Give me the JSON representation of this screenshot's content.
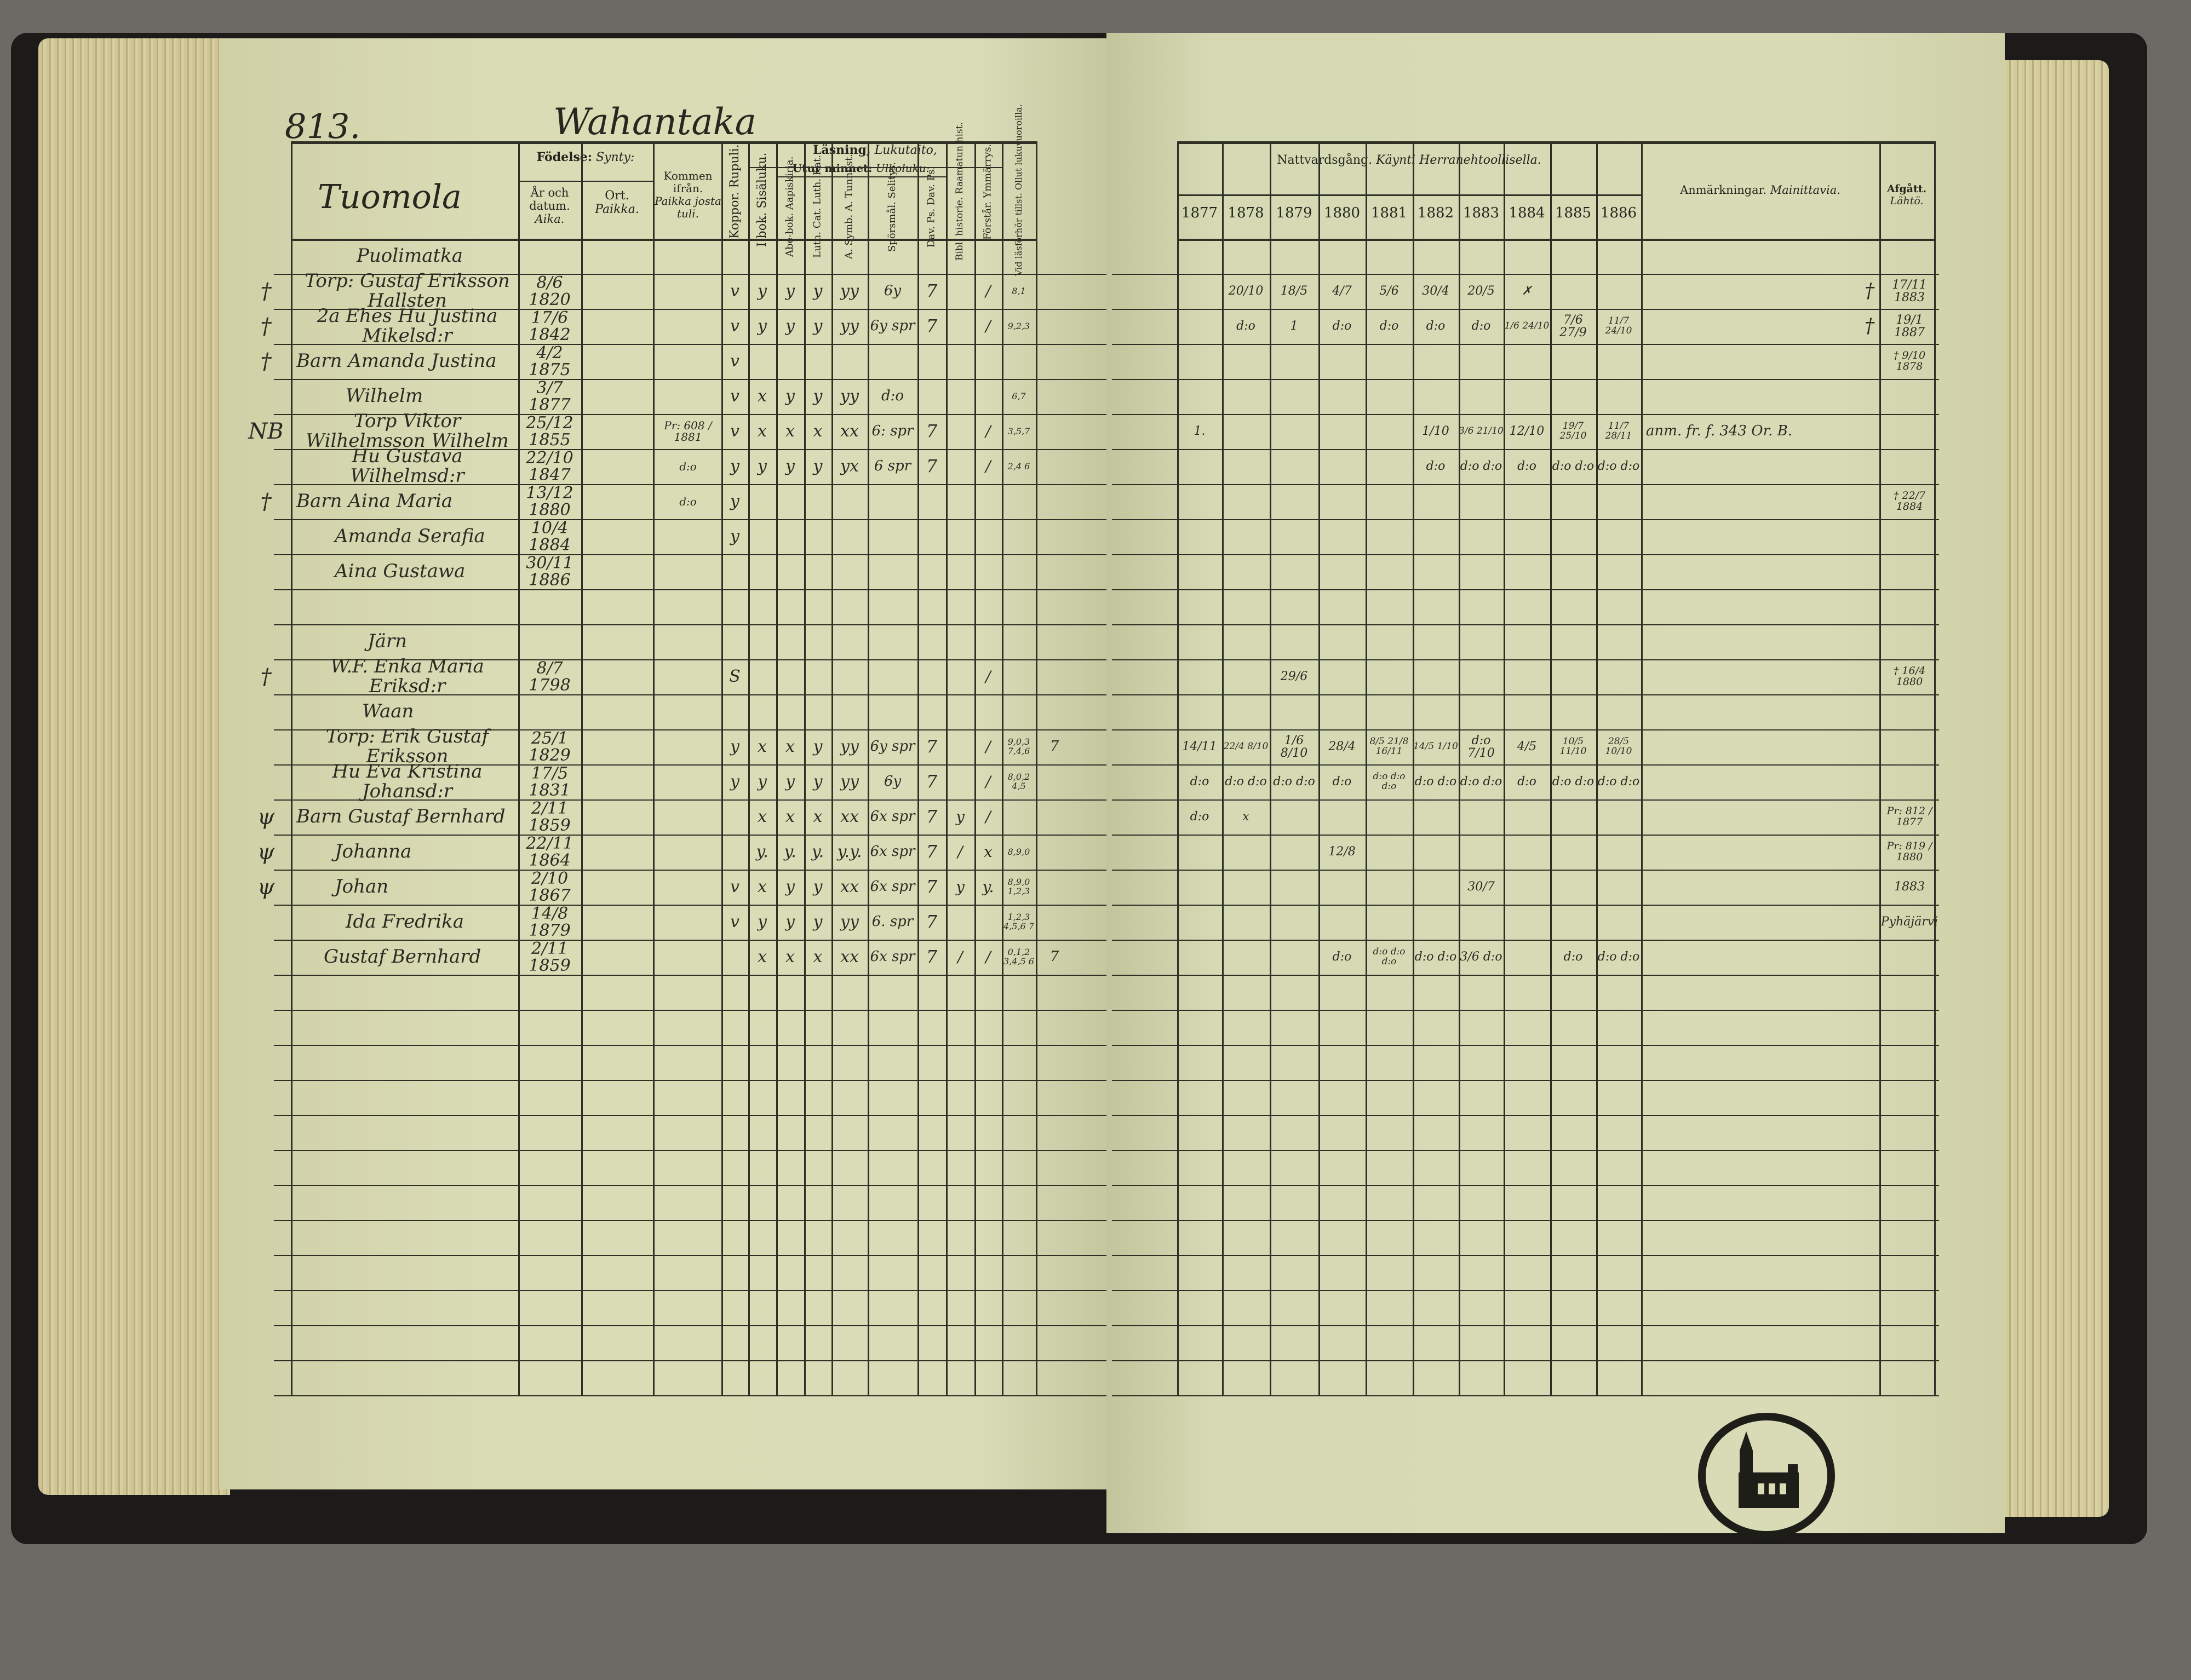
{
  "left_page": {
    "page_number": "813.",
    "village": "Wahantaka",
    "farm": "Tuomola",
    "headers": {
      "birth": "Födelse:",
      "birth_fi": "Synty:",
      "year_date": "År och datum.",
      "year_date_fi": "Aika.",
      "place": "Ort.",
      "place_fi": "Paikka.",
      "came_from": "Kommen ifrån.",
      "came_from_fi": "Paikka josta tuli.",
      "smallpox": "Koppor. Rupuli.",
      "reading": "Läsning,",
      "reading_fi": "Lukutaito,",
      "book": "I bok. Sisäluku.",
      "memory": "Utur minnet:",
      "memory_fi": "Ulkoluku:",
      "abc": "Abe-bok. Aapiskirja.",
      "catechism": "Luth. Cat. Luth. Kat.",
      "symb": "A. Symb. A. Tunnust.",
      "questions": "Spörsmål. Selitys.",
      "psalms": "Dav. Ps. Dav. Ps.",
      "bible_history": "Bibl. historie. Raamatun hist.",
      "understanding": "Förstår. Ymmärrys.",
      "exams": "Vid läsförhör tillst. Ollut lukuvuoroilla."
    },
    "rows": [
      [
        "",
        "Puolimatka",
        "",
        "",
        "",
        "",
        "",
        "",
        "",
        "",
        "",
        "",
        "",
        "",
        "",
        ""
      ],
      [
        "†",
        "Torp: Gustaf Eriksson Hallsten",
        "8/6 1820",
        "",
        "",
        "v",
        "y",
        "y",
        "y",
        "yy",
        "6y",
        "7",
        "",
        "/",
        "8,1",
        ""
      ],
      [
        "†",
        "2a Ehes Hu Justina Mikelsd:r",
        "17/6 1842",
        "",
        "",
        "v",
        "y",
        "y",
        "y",
        "yy",
        "6y spr",
        "7",
        "",
        "/",
        "9,2,3",
        ""
      ],
      [
        "†",
        "Barn Amanda Justina",
        "4/2 1875",
        "",
        "",
        "v",
        "",
        "",
        "",
        "",
        "",
        "",
        "",
        "",
        "",
        ""
      ],
      [
        "",
        "Wilhelm",
        "3/7 1877",
        "",
        "",
        "v",
        "x",
        "y",
        "y",
        "yy",
        "d:o",
        "",
        "",
        "",
        "6,7",
        ""
      ],
      [
        "NB",
        "Torp Viktor Wilhelmsson Wilhelm",
        "25/12 1855",
        "",
        "Pr: 608 / 1881",
        "v",
        "x",
        "x",
        "x",
        "xx",
        "6: spr",
        "7",
        "",
        "/",
        "3,5,7",
        ""
      ],
      [
        "",
        "Hu Gustava Wilhelmsd:r",
        "22/10 1847",
        "",
        "d:o",
        "y",
        "y",
        "y",
        "y",
        "yx",
        "6 spr",
        "7",
        "",
        "/",
        "2,4 6",
        ""
      ],
      [
        "†",
        "Barn Aina Maria",
        "13/12 1880",
        "",
        "d:o",
        "y",
        "",
        "",
        "",
        "",
        "",
        "",
        "",
        "",
        "",
        ""
      ],
      [
        "",
        "Amanda Serafia",
        "10/4 1884",
        "",
        "",
        "y",
        "",
        "",
        "",
        "",
        "",
        "",
        "",
        "",
        "",
        ""
      ],
      [
        "",
        "Aina Gustawa",
        "30/11 1886",
        "",
        "",
        "",
        "",
        "",
        "",
        "",
        "",
        "",
        "",
        "",
        "",
        ""
      ],
      [
        "",
        "",
        "",
        "",
        "",
        "",
        "",
        "",
        "",
        "",
        "",
        "",
        "",
        "",
        "",
        ""
      ],
      [
        "",
        "Järn",
        "",
        "",
        "",
        "",
        "",
        "",
        "",
        "",
        "",
        "",
        "",
        "",
        "",
        ""
      ],
      [
        "†",
        "W.F. Enka Maria Eriksd:r",
        "8/7 1798",
        "",
        "",
        "S",
        "",
        "",
        "",
        "",
        "",
        "",
        "",
        "/",
        "",
        ""
      ],
      [
        "",
        "Waan",
        "",
        "",
        "",
        "",
        "",
        "",
        "",
        "",
        "",
        "",
        "",
        "",
        "",
        ""
      ],
      [
        "",
        "Torp: Erik Gustaf Eriksson",
        "25/1 1829",
        "",
        "",
        "y",
        "x",
        "x",
        "y",
        "yy",
        "6y spr",
        "7",
        "",
        "/",
        "9,0,3 7,4,6",
        "7"
      ],
      [
        "",
        "Hu Eva Kristina Johansd:r",
        "17/5 1831",
        "",
        "",
        "y",
        "y",
        "y",
        "y",
        "yy",
        "6y",
        "7",
        "",
        "/",
        "8,0,2 4,5",
        ""
      ],
      [
        "ψ",
        "Barn Gustaf Bernhard",
        "2/11 1859",
        "",
        "",
        "",
        "x",
        "x",
        "x",
        "xx",
        "6x spr",
        "7",
        "y",
        "/",
        "",
        ""
      ],
      [
        "ψ",
        "Johanna",
        "22/11 1864",
        "",
        "",
        "",
        "y.",
        "y.",
        "y.",
        "y.y.",
        "6x spr",
        "7",
        "/",
        "x",
        "8,9,0",
        ""
      ],
      [
        "ψ",
        "Johan",
        "2/10 1867",
        "",
        "",
        "v",
        "x",
        "y",
        "y",
        "xx",
        "6x spr",
        "7",
        "y",
        "y.",
        "8,9,0 1,2,3",
        ""
      ],
      [
        "",
        "Ida Fredrika",
        "14/8 1879",
        "",
        "",
        "v",
        "y",
        "y",
        "y",
        "yy",
        "6. spr",
        "7",
        "",
        "",
        "1,2,3 4,5,6 7",
        ""
      ],
      [
        "",
        "Gustaf Bernhard",
        "2/11 1859",
        "",
        "",
        "",
        "x",
        "x",
        "x",
        "xx",
        "6x spr",
        "7",
        "/",
        "/",
        "0,1,2 3,4,5 6",
        "7"
      ]
    ]
  },
  "right_page": {
    "headers": {
      "communion": "Nattvardsgång.",
      "communion_fi": "Käynti Herranehtoollisella.",
      "years": [
        "1877",
        "1878",
        "1879",
        "1880",
        "1881",
        "1882",
        "1883",
        "1884",
        "1885",
        "1886"
      ],
      "remarks": "Anmärkningar.",
      "remarks_fi": "Mainittavia.",
      "departed": "Afgått.",
      "departed_fi": "Lähtö."
    },
    "rows": [
      {
        "communion": [
          "",
          "",
          "",
          "",
          "",
          "",
          "",
          "",
          "",
          ""
        ],
        "mark": "",
        "remark": "",
        "departed": ""
      },
      {
        "communion": [
          "",
          "20/10",
          "18/5",
          "4/7",
          "5/6",
          "30/4",
          "20/5",
          "✗",
          "",
          ""
        ],
        "mark": "†",
        "remark": "",
        "departed": "17/11 1883"
      },
      {
        "communion": [
          "",
          "d:o",
          "1",
          "d:o",
          "d:o",
          "d:o",
          "d:o",
          "1/6 24/10",
          "7/6 27/9",
          "11/7 24/10"
        ],
        "mark": "†",
        "remark": "",
        "departed": "19/1 1887"
      },
      {
        "communion": [
          "",
          "",
          "",
          "",
          "",
          "",
          "",
          "",
          "",
          ""
        ],
        "mark": "",
        "remark": "",
        "departed": "† 9/10 1878"
      },
      {
        "communion": [
          "",
          "",
          "",
          "",
          "",
          "",
          "",
          "",
          "",
          ""
        ],
        "mark": "",
        "remark": "",
        "departed": ""
      },
      {
        "communion": [
          "1.",
          "",
          "",
          "",
          "",
          "1/10",
          "3/6 21/10",
          "12/10",
          "19/7 25/10",
          "11/7 28/11"
        ],
        "mark": "",
        "remark": "anm. fr. f. 343 Or. B.",
        "departed": ""
      },
      {
        "communion": [
          "",
          "",
          "",
          "",
          "",
          "d:o",
          "d:o d:o",
          "d:o",
          "d:o d:o",
          "d:o d:o"
        ],
        "mark": "",
        "remark": "",
        "departed": ""
      },
      {
        "communion": [
          "",
          "",
          "",
          "",
          "",
          "",
          "",
          "",
          "",
          ""
        ],
        "mark": "",
        "remark": "",
        "departed": "† 22/7 1884"
      },
      {
        "communion": [
          "",
          "",
          "",
          "",
          "",
          "",
          "",
          "",
          "",
          ""
        ],
        "mark": "",
        "remark": "",
        "departed": ""
      },
      {
        "communion": [
          "",
          "",
          "",
          "",
          "",
          "",
          "",
          "",
          "",
          ""
        ],
        "mark": "",
        "remark": "",
        "departed": ""
      },
      {
        "communion": [
          "",
          "",
          "",
          "",
          "",
          "",
          "",
          "",
          "",
          ""
        ],
        "mark": "",
        "remark": "",
        "departed": ""
      },
      {
        "communion": [
          "",
          "",
          "",
          "",
          "",
          "",
          "",
          "",
          "",
          ""
        ],
        "mark": "",
        "remark": "",
        "departed": ""
      },
      {
        "communion": [
          "",
          "",
          "29/6",
          "",
          "",
          "",
          "",
          "",
          "",
          ""
        ],
        "mark": "",
        "remark": "",
        "departed": "† 16/4 1880"
      },
      {
        "communion": [
          "",
          "",
          "",
          "",
          "",
          "",
          "",
          "",
          "",
          ""
        ],
        "mark": "",
        "remark": "",
        "departed": ""
      },
      {
        "communion": [
          "14/11",
          "22/4 8/10",
          "1/6 8/10",
          "28/4",
          "8/5 21/8 16/11",
          "14/5 1/10",
          "d:o 7/10",
          "4/5",
          "10/5 11/10",
          "28/5 10/10"
        ],
        "mark": "",
        "remark": "",
        "departed": ""
      },
      {
        "communion": [
          "d:o",
          "d:o d:o",
          "d:o d:o",
          "d:o",
          "d:o d:o d:o",
          "d:o d:o",
          "d:o d:o",
          "d:o",
          "d:o d:o",
          "d:o d:o"
        ],
        "mark": "",
        "remark": "",
        "departed": ""
      },
      {
        "communion": [
          "d:o",
          "x",
          "",
          "",
          "",
          "",
          "",
          "",
          "",
          ""
        ],
        "mark": "",
        "remark": "",
        "departed": "Pr: 812 / 1877"
      },
      {
        "communion": [
          "",
          "",
          "",
          "12/8",
          "",
          "",
          "",
          "",
          "",
          ""
        ],
        "mark": "",
        "remark": "",
        "departed": "Pr: 819 / 1880"
      },
      {
        "communion": [
          "",
          "",
          "",
          "",
          "",
          "",
          "30/7",
          "",
          "",
          ""
        ],
        "mark": "",
        "remark": "",
        "departed": "1883"
      },
      {
        "communion": [
          "",
          "",
          "",
          "",
          "",
          "",
          "",
          "",
          "",
          ""
        ],
        "mark": "",
        "remark": "",
        "departed": "Pyhäjärvi"
      },
      {
        "communion": [
          "",
          "",
          "",
          "d:o",
          "d:o d:o d:o",
          "d:o d:o",
          "3/6 d:o",
          "",
          "d:o",
          "d:o d:o"
        ],
        "mark": "",
        "remark": "",
        "departed": ""
      }
    ]
  },
  "colors": {
    "paper": "#d8dbb6",
    "ink": "#26271e",
    "cover": "#1d1b19"
  }
}
